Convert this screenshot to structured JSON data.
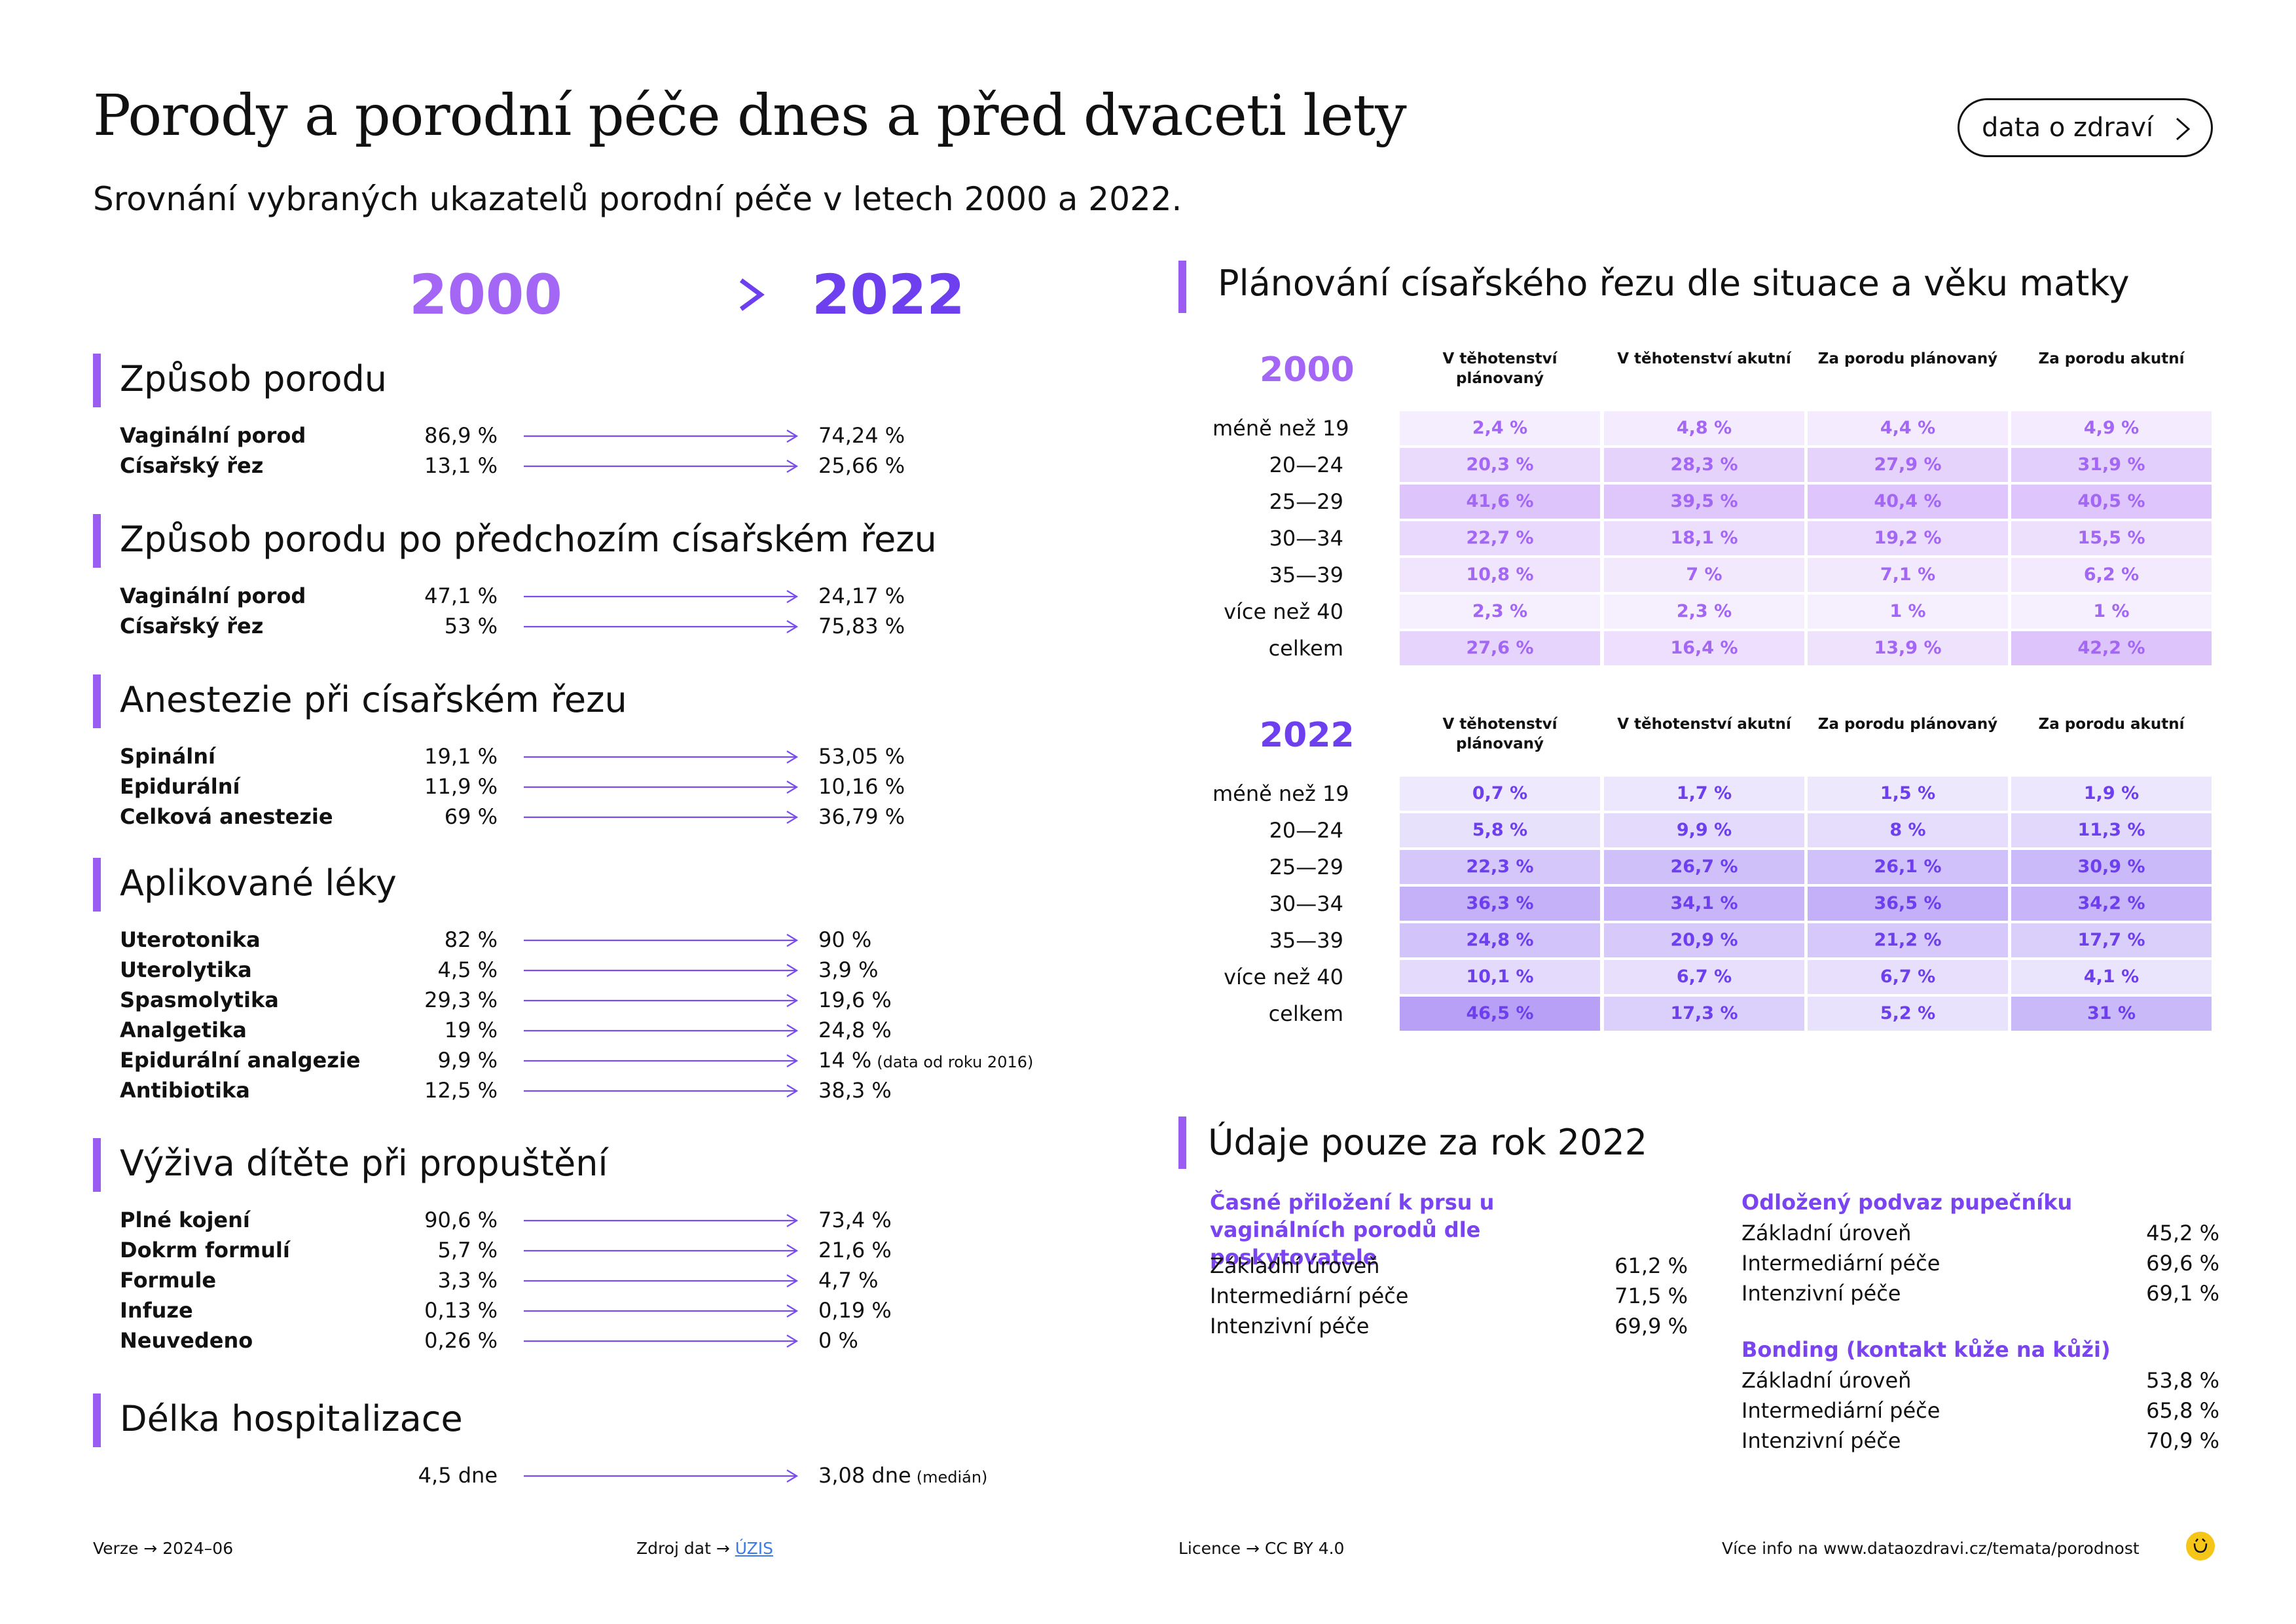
{
  "header": {
    "title": "Porody a porodní péče dnes a před dvaceti lety",
    "subtitle": "Srovnání vybraných ukazatelů porodní péče v letech 2000 a 2022.",
    "link_label": "data o zdraví"
  },
  "years": {
    "from": "2000",
    "to": "2022"
  },
  "sections": [
    {
      "title": "Způsob porodu",
      "rows": [
        {
          "label": "Vaginální porod",
          "v2000": "86,9 %",
          "v2022": "74,24 %",
          "note": ""
        },
        {
          "label": "Císařský řez",
          "v2000": "13,1 %",
          "v2022": "25,66 %",
          "note": ""
        }
      ]
    },
    {
      "title": "Způsob porodu po předchozím císařském řezu",
      "rows": [
        {
          "label": "Vaginální porod",
          "v2000": "47,1 %",
          "v2022": "24,17 %",
          "note": ""
        },
        {
          "label": "Císařský řez",
          "v2000": "53 %",
          "v2022": "75,83 %",
          "note": ""
        }
      ]
    },
    {
      "title": "Anestezie při císařském řezu",
      "rows": [
        {
          "label": "Spinální",
          "v2000": "19,1 %",
          "v2022": "53,05 %",
          "note": ""
        },
        {
          "label": "Epidurální",
          "v2000": "11,9 %",
          "v2022": "10,16 %",
          "note": ""
        },
        {
          "label": "Celková anestezie",
          "v2000": "69 %",
          "v2022": "36,79 %",
          "note": ""
        }
      ]
    },
    {
      "title": "Aplikované léky",
      "rows": [
        {
          "label": "Uterotonika",
          "v2000": "82 %",
          "v2022": "90 %",
          "note": ""
        },
        {
          "label": "Uterolytika",
          "v2000": "4,5 %",
          "v2022": "3,9 %",
          "note": ""
        },
        {
          "label": "Spasmolytika",
          "v2000": "29,3 %",
          "v2022": "19,6 %",
          "note": ""
        },
        {
          "label": "Analgetika",
          "v2000": "19 %",
          "v2022": "24,8 %",
          "note": ""
        },
        {
          "label": "Epidurální analgezie",
          "v2000": "9,9 %",
          "v2022": "14 %",
          "note": "(data od roku 2016)"
        },
        {
          "label": "Antibiotika",
          "v2000": "12,5 %",
          "v2022": "38,3 %",
          "note": ""
        }
      ]
    },
    {
      "title": "Výživa dítěte při propuštění",
      "rows": [
        {
          "label": "Plné kojení",
          "v2000": "90,6 %",
          "v2022": "73,4 %",
          "note": ""
        },
        {
          "label": "Dokrm formulí",
          "v2000": "5,7 %",
          "v2022": "21,6 %",
          "note": ""
        },
        {
          "label": "Formule",
          "v2000": "3,3 %",
          "v2022": "4,7 %",
          "note": ""
        },
        {
          "label": "Infuze",
          "v2000": "0,13 %",
          "v2022": "0,19 %",
          "note": ""
        },
        {
          "label": "Neuvedeno",
          "v2000": "0,26 %",
          "v2022": "0 %",
          "note": ""
        }
      ]
    },
    {
      "title": "Délka hospitalizace",
      "rows": [
        {
          "label": "",
          "v2000": "4,5 dne",
          "v2022": "3,08 dne",
          "note": "(medián)"
        }
      ]
    }
  ],
  "csection_planning": {
    "title": "Plánování císařského řezu dle situace a věku matky",
    "columns": [
      "V těhotenství plánovaný",
      "V těhotenství akutní",
      "Za porodu plánovaný",
      "Za porodu akutní"
    ],
    "age_groups": [
      "méně než 19",
      "20—24",
      "25—29",
      "30—34",
      "35—39",
      "více než 40",
      "celkem"
    ],
    "tables": [
      {
        "year": "2000",
        "values": [
          [
            "2,4 %",
            "4,8 %",
            "4,4 %",
            "4,9 %"
          ],
          [
            "20,3 %",
            "28,3 %",
            "27,9 %",
            "31,9 %"
          ],
          [
            "41,6 %",
            "39,5 %",
            "40,4 %",
            "40,5 %"
          ],
          [
            "22,7 %",
            "18,1 %",
            "19,2 %",
            "15,5 %"
          ],
          [
            "10,8 %",
            "7 %",
            "7,1 %",
            "6,2 %"
          ],
          [
            "2,3 %",
            "2,3 %",
            "1 %",
            "1 %"
          ],
          [
            "27,6 %",
            "16,4 %",
            "13,9 %",
            "42,2 %"
          ]
        ]
      },
      {
        "year": "2022",
        "values": [
          [
            "0,7 %",
            "1,7 %",
            "1,5 %",
            "1,9 %"
          ],
          [
            "5,8 %",
            "9,9 %",
            "8 %",
            "11,3 %"
          ],
          [
            "22,3 %",
            "26,7 %",
            "26,1 %",
            "30,9 %"
          ],
          [
            "36,3 %",
            "34,1 %",
            "36,5 %",
            "34,2 %"
          ],
          [
            "24,8 %",
            "20,9 %",
            "21,2 %",
            "17,7 %"
          ],
          [
            "10,1 %",
            "6,7 %",
            "6,7 %",
            "4,1 %"
          ],
          [
            "46,5 %",
            "17,3 %",
            "5,2 %",
            "31 %"
          ]
        ]
      }
    ]
  },
  "only_2022": {
    "title": "Údaje pouze za rok 2022",
    "groups": [
      {
        "title": "Časné přiložení k prsu u vaginálních porodů dle poskytovatele",
        "rows": [
          {
            "label": "Základní úroveň",
            "value": "61,2 %"
          },
          {
            "label": "Intermediární péče",
            "value": "71,5 %"
          },
          {
            "label": "Intenzivní péče",
            "value": "69,9 %"
          }
        ]
      },
      {
        "title": "Odložený podvaz pupečníku",
        "rows": [
          {
            "label": "Základní úroveň",
            "value": "45,2 %"
          },
          {
            "label": "Intermediární péče",
            "value": "69,6 %"
          },
          {
            "label": "Intenzivní péče",
            "value": "69,1 %"
          }
        ]
      },
      {
        "title": "Bonding (kontakt kůže na kůži)",
        "rows": [
          {
            "label": "Základní úroveň",
            "value": "53,8 %"
          },
          {
            "label": "Intermediární péče",
            "value": "65,8 %"
          },
          {
            "label": "Intenzivní péče",
            "value": "70,9 %"
          }
        ]
      }
    ]
  },
  "footer": {
    "version_label": "Verze",
    "version": "2024–06",
    "source_label": "Zdroj dat",
    "source": "ÚZIS",
    "license_label": "Licence",
    "license": "CC BY 4.0",
    "more_info": "Více info na www.dataozdravi.cz/temata/porodnost"
  },
  "colors": {
    "accent_2000": "#A366F5",
    "accent_2022": "#6D3FEE",
    "section_bar": "#9B5CF2",
    "link": "#3B7BE8",
    "logo": "#F5C518"
  }
}
